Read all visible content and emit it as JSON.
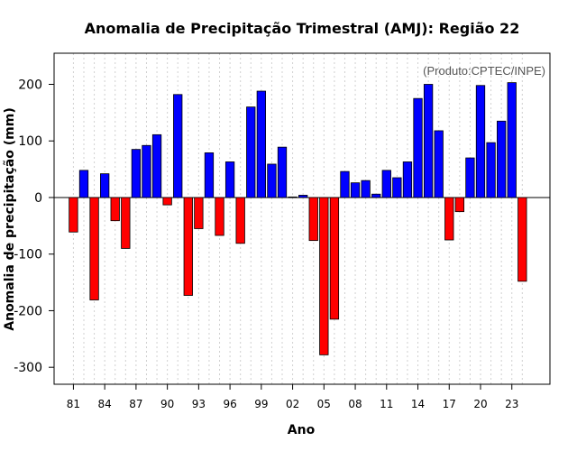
{
  "chart_data": {
    "type": "bar",
    "title": "Anomalia de Precipitação Trimestral (AMJ): Região 22",
    "xlabel": "Ano",
    "ylabel": "Anomalia de precipitação (mm)",
    "credit": "(Produto:CPTEC/INPE)",
    "ylim": [
      -330,
      255
    ],
    "yticks": [
      -300,
      -200,
      -100,
      0,
      100,
      200
    ],
    "xtick_labels": [
      "81",
      "84",
      "87",
      "90",
      "93",
      "96",
      "99",
      "02",
      "05",
      "08",
      "11",
      "14",
      "17",
      "20",
      "23"
    ],
    "xtick_every": 3,
    "grid": true,
    "colors": {
      "positive": "#0000ff",
      "negative": "#ff0000"
    },
    "categories": [
      "1981",
      "1982",
      "1983",
      "1984",
      "1985",
      "1986",
      "1987",
      "1988",
      "1989",
      "1990",
      "1991",
      "1992",
      "1993",
      "1994",
      "1995",
      "1996",
      "1997",
      "1998",
      "1999",
      "2000",
      "2001",
      "2002",
      "2003",
      "2004",
      "2005",
      "2006",
      "2007",
      "2008",
      "2009",
      "2010",
      "2011",
      "2012",
      "2013",
      "2014",
      "2015",
      "2016",
      "2017",
      "2018",
      "2019",
      "2020",
      "2021",
      "2022",
      "2023",
      "2024"
    ],
    "values": [
      -61,
      48,
      -181,
      42,
      -41,
      -90,
      85,
      92,
      111,
      -13,
      182,
      -173,
      -55,
      79,
      -67,
      63,
      -81,
      160,
      188,
      59,
      89,
      1,
      4,
      -76,
      -278,
      -215,
      46,
      26,
      30,
      6,
      48,
      35,
      63,
      175,
      200,
      118,
      -75,
      -25,
      70,
      198,
      97,
      135,
      203,
      -148
    ]
  }
}
